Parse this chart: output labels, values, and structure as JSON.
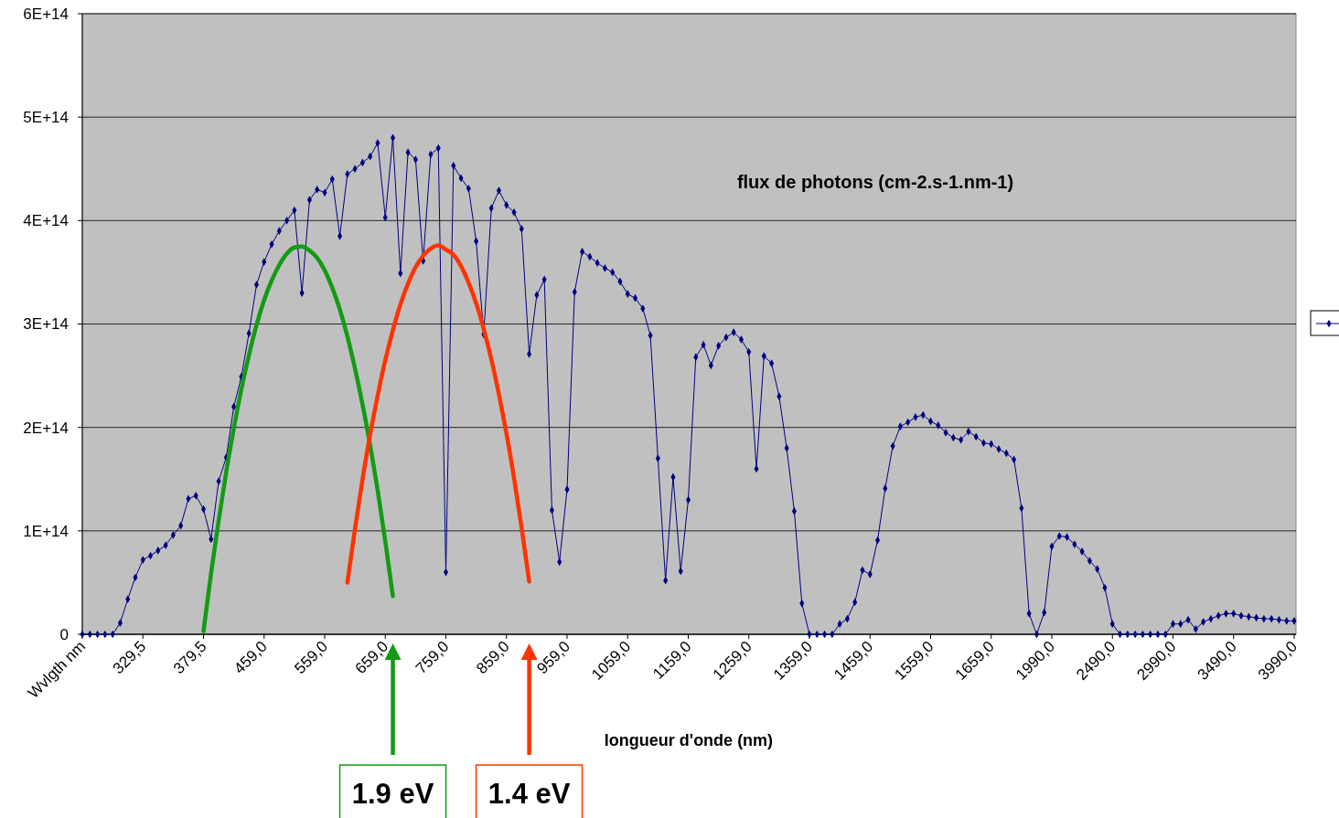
{
  "chart_data": {
    "type": "line",
    "xlabel": "longueur d'onde (nm)",
    "categories": [
      "Wvlgth nm",
      null,
      null,
      null,
      null,
      null,
      null,
      null,
      "329,5",
      null,
      null,
      null,
      null,
      null,
      null,
      null,
      "379,5",
      null,
      null,
      null,
      null,
      null,
      null,
      null,
      "459,0",
      null,
      null,
      null,
      null,
      null,
      null,
      null,
      "559,0",
      null,
      null,
      null,
      null,
      null,
      null,
      null,
      "659,0",
      null,
      null,
      null,
      null,
      null,
      null,
      null,
      "759,0",
      null,
      null,
      null,
      null,
      null,
      null,
      null,
      "859,0",
      null,
      null,
      null,
      null,
      null,
      null,
      null,
      "959,0",
      null,
      null,
      null,
      null,
      null,
      null,
      null,
      "1059,0",
      null,
      null,
      null,
      null,
      null,
      null,
      null,
      "1159,0",
      null,
      null,
      null,
      null,
      null,
      null,
      null,
      "1259,0",
      null,
      null,
      null,
      null,
      null,
      null,
      null,
      "1359,0",
      null,
      null,
      null,
      null,
      null,
      null,
      null,
      "1459,0",
      null,
      null,
      null,
      null,
      null,
      null,
      null,
      "1559,0",
      null,
      null,
      null,
      null,
      null,
      null,
      null,
      "1659,0",
      null,
      null,
      null,
      null,
      null,
      null,
      null,
      "1990,0",
      null,
      null,
      null,
      null,
      null,
      null,
      null,
      "2490,0",
      null,
      null,
      null,
      null,
      null,
      null,
      null,
      "2990,0",
      null,
      null,
      null,
      null,
      null,
      null,
      null,
      "3490,0",
      null,
      null,
      null,
      null,
      null,
      null,
      null,
      "3990,0"
    ],
    "series": [
      {
        "color": "#000080",
        "values": [
          0,
          0,
          0,
          0,
          0,
          11000000000000.0,
          34000000000000.0,
          55000000000000.0,
          72000000000000.0,
          76000000000000.0,
          81000000000000.0,
          86000000000000.0,
          96000000000000.0,
          105000000000000.0,
          131000000000000.0,
          134000000000000.0,
          121000000000000.0,
          92000000000000.0,
          148000000000000.0,
          171000000000000.0,
          220000000000000.0,
          249000000000000.0,
          291000000000000.0,
          338000000000000.0,
          360000000000000.0,
          377000000000000.0,
          390000000000000.0,
          400000000000000.0,
          410000000000000.0,
          330000000000000.0,
          420000000000000.0,
          430000000000000.0,
          427000000000000.0,
          440000000000000.0,
          385000000000000.0,
          445000000000000.0,
          450000000000000.0,
          456000000000000.0,
          462000000000000.0,
          475000000000000.0,
          403000000000000.0,
          480000000000000.0,
          349000000000000.0,
          466000000000000.0,
          459000000000000.0,
          361000000000000.0,
          464000000000000.0,
          470000000000000.0,
          60000000000000.0,
          453000000000000.0,
          441000000000000.0,
          431000000000000.0,
          380000000000000.0,
          290000000000000.0,
          412000000000000.0,
          429000000000000.0,
          415000000000000.0,
          408000000000000.0,
          392000000000000.0,
          271000000000000.0,
          328000000000000.0,
          343000000000000.0,
          120000000000000.0,
          70000000000000.0,
          140000000000000.0,
          331000000000000.0,
          370000000000000.0,
          365000000000000.0,
          359000000000000.0,
          354000000000000.0,
          350000000000000.0,
          341000000000000.0,
          329000000000000.0,
          325000000000000.0,
          315000000000000.0,
          289000000000000.0,
          170000000000000.0,
          52000000000000.0,
          152000000000000.0,
          61000000000000.0,
          130000000000000.0,
          268000000000000.0,
          280000000000000.0,
          260000000000000.0,
          279000000000000.0,
          287000000000000.0,
          292000000000000.0,
          285000000000000.0,
          273000000000000.0,
          160000000000000.0,
          269000000000000.0,
          262000000000000.0,
          230000000000000.0,
          180000000000000.0,
          119000000000000.0,
          30000000000000.0,
          0,
          0,
          0,
          0,
          10000000000000.0,
          15000000000000.0,
          31000000000000.0,
          62000000000000.0,
          58000000000000.0,
          91000000000000.0,
          141000000000000.0,
          182000000000000.0,
          201000000000000.0,
          205000000000000.0,
          210000000000000.0,
          212000000000000.0,
          206000000000000.0,
          202000000000000.0,
          195000000000000.0,
          190000000000000.0,
          188000000000000.0,
          196000000000000.0,
          191000000000000.0,
          185000000000000.0,
          184000000000000.0,
          179000000000000.0,
          175000000000000.0,
          169000000000000.0,
          122000000000000.0,
          20000000000000.0,
          0,
          21000000000000.0,
          85000000000000.0,
          95000000000000.0,
          94000000000000.0,
          87000000000000.0,
          80000000000000.0,
          71000000000000.0,
          63000000000000.0,
          45000000000000.0,
          10000000000000.0,
          0,
          0,
          0,
          0,
          0,
          0,
          0,
          10000000000000.0,
          10000000000000.0,
          14000000000000.0,
          5000000000000.0,
          12000000000000.0,
          15000000000000.0,
          18000000000000.0,
          20000000000000.0,
          20000000000000.0,
          18000000000000.0,
          17000000000000.0,
          16000000000000.0,
          15000000000000.0,
          15000000000000.0,
          14000000000000.0,
          13000000000000.0,
          13000000000000.0
        ]
      },
      {
        "color": "#139b13",
        "marker": "none",
        "values": [
          null,
          null,
          null,
          null,
          null,
          null,
          null,
          null,
          null,
          null,
          null,
          null,
          null,
          null,
          null,
          null,
          3000000000000.0,
          59000000000000.0,
          110000000000000.0,
          157000000000000.0,
          199000000000000.0,
          237000000000000.0,
          270000000000000.0,
          299000000000000.0,
          323000000000000.0,
          342000000000000.0,
          357000000000000.0,
          368000000000000.0,
          374000000000000.0,
          375000000000000.0,
          371000000000000.0,
          364000000000000.0,
          352000000000000.0,
          335000000000000.0,
          314000000000000.0,
          288000000000000.0,
          257000000000000.0,
          222000000000000.0,
          183000000000000.0,
          139000000000000.0,
          90000000000000.0,
          37000000000000.0,
          null,
          null,
          null,
          null,
          null,
          null,
          null,
          null,
          null,
          null,
          null,
          null,
          null,
          null,
          null,
          null,
          null,
          null,
          null,
          null,
          null,
          null,
          null,
          null,
          null,
          null,
          null,
          null,
          null,
          null,
          null,
          null,
          null,
          null,
          null,
          null,
          null,
          null,
          null,
          null,
          null,
          null,
          null,
          null,
          null,
          null,
          null,
          null,
          null,
          null,
          null,
          null,
          null,
          null,
          null,
          null,
          null,
          null,
          null,
          null,
          null,
          null,
          null,
          null,
          null,
          null,
          null,
          null,
          null,
          null,
          null,
          null,
          null,
          null,
          null,
          null,
          null,
          null,
          null,
          null,
          null,
          null,
          null,
          null,
          null,
          null,
          null,
          null,
          null,
          null,
          null,
          null,
          null,
          null,
          null,
          null,
          null,
          null,
          null,
          null,
          null,
          null,
          null,
          null,
          null,
          null,
          null,
          null,
          null,
          null,
          null,
          null,
          null,
          null,
          null,
          null,
          null,
          null,
          null
        ]
      },
      {
        "color": "#ff3300",
        "marker": "none",
        "values": [
          null,
          null,
          null,
          null,
          null,
          null,
          null,
          null,
          null,
          null,
          null,
          null,
          null,
          null,
          null,
          null,
          null,
          null,
          null,
          null,
          null,
          null,
          null,
          null,
          null,
          null,
          null,
          null,
          null,
          null,
          null,
          null,
          null,
          null,
          null,
          50000000000000.0,
          102000000000000.0,
          150000000000000.0,
          193000000000000.0,
          231000000000000.0,
          265000000000000.0,
          294000000000000.0,
          319000000000000.0,
          339000000000000.0,
          355000000000000.0,
          366000000000000.0,
          373000000000000.0,
          376000000000000.0,
          372000000000000.0,
          367000000000000.0,
          356000000000000.0,
          340000000000000.0,
          320000000000000.0,
          295000000000000.0,
          266000000000000.0,
          232000000000000.0,
          194000000000000.0,
          151000000000000.0,
          103000000000000.0,
          51000000000000.0,
          null,
          null,
          null,
          null,
          null,
          null,
          null,
          null,
          null,
          null,
          null,
          null,
          null,
          null,
          null,
          null,
          null,
          null,
          null,
          null,
          null,
          null,
          null,
          null,
          null,
          null,
          null,
          null,
          null,
          null,
          null,
          null,
          null,
          null,
          null,
          null,
          null,
          null,
          null,
          null,
          null,
          null,
          null,
          null,
          null,
          null,
          null,
          null,
          null,
          null,
          null,
          null,
          null,
          null,
          null,
          null,
          null,
          null,
          null,
          null,
          null,
          null,
          null,
          null,
          null,
          null,
          null,
          null,
          null,
          null,
          null,
          null,
          null,
          null,
          null,
          null,
          null,
          null,
          null,
          null,
          null,
          null,
          null,
          null,
          null,
          null,
          null,
          null,
          null,
          null,
          null,
          null,
          null,
          null,
          null,
          null,
          null,
          null,
          null,
          null,
          null
        ]
      }
    ],
    "ylim": [
      0,
      600000000000000.0
    ],
    "yticks": [
      0,
      {
        "value": 100000000000000.0,
        "label": "1E+14"
      },
      {
        "value": 200000000000000.0,
        "label": "2E+14"
      },
      {
        "value": 300000000000000.0,
        "label": "3E+14"
      },
      {
        "value": 400000000000000.0,
        "label": "4E+14"
      },
      {
        "value": 500000000000000.0,
        "label": "5E+14"
      },
      {
        "value": 600000000000000.0,
        "label": "6E+14"
      }
    ],
    "grid": "y",
    "marker": "diamond",
    "line_style": "solid",
    "annotations": [
      "flux de photons (cm-2.s-1.nm-1)",
      "1.9 eV",
      "1.4 eV"
    ]
  }
}
